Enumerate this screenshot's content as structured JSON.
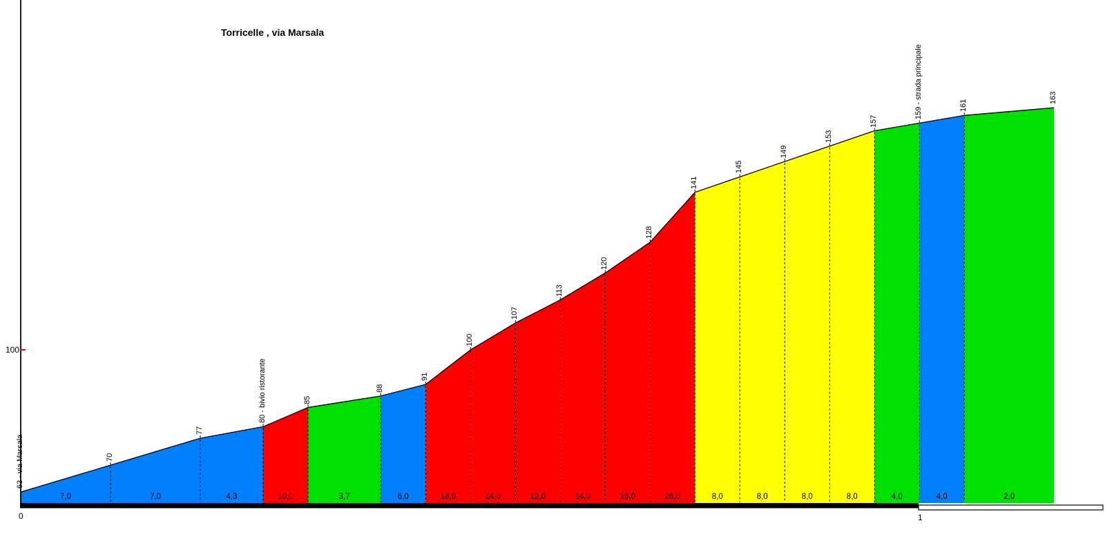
{
  "chart_data": {
    "type": "area",
    "title": "Torricelle , via Marsala",
    "x_axis": {
      "unit": "km",
      "tick_labels": [
        "0",
        "1"
      ],
      "tick_positions_km": [
        0,
        1
      ],
      "range_km": [
        0,
        1.151
      ]
    },
    "y_axis": {
      "unit": "m",
      "tick_labels": [
        "100"
      ],
      "tick_values_m": [
        100
      ],
      "tick_color": "#e80000"
    },
    "palette": {
      "blue": "#0080ff",
      "green": "#00e000",
      "red": "#ff0000",
      "yellow": "#ffff00"
    },
    "points": [
      {
        "km": 0.0,
        "elev_m": 63,
        "label": "63 - via Marsala"
      },
      {
        "km": 0.1,
        "elev_m": 70,
        "label": "70"
      },
      {
        "km": 0.2,
        "elev_m": 77,
        "label": "77"
      },
      {
        "km": 0.27,
        "elev_m": 80,
        "label": "80 - bivio ristorante"
      },
      {
        "km": 0.32,
        "elev_m": 85,
        "label": "85"
      },
      {
        "km": 0.401,
        "elev_m": 88,
        "label": "88"
      },
      {
        "km": 0.451,
        "elev_m": 91,
        "label": "91"
      },
      {
        "km": 0.501,
        "elev_m": 100,
        "label": "100"
      },
      {
        "km": 0.551,
        "elev_m": 107,
        "label": "107"
      },
      {
        "km": 0.601,
        "elev_m": 113,
        "label": "113"
      },
      {
        "km": 0.651,
        "elev_m": 120,
        "label": "120"
      },
      {
        "km": 0.701,
        "elev_m": 128,
        "label": "128"
      },
      {
        "km": 0.751,
        "elev_m": 141,
        "label": "141"
      },
      {
        "km": 0.801,
        "elev_m": 145,
        "label": "145"
      },
      {
        "km": 0.851,
        "elev_m": 149,
        "label": "149"
      },
      {
        "km": 0.901,
        "elev_m": 153,
        "label": "153"
      },
      {
        "km": 0.951,
        "elev_m": 157,
        "label": "157"
      },
      {
        "km": 1.001,
        "elev_m": 159,
        "label": "159 - strada principale"
      },
      {
        "km": 1.051,
        "elev_m": 161,
        "label": "161"
      },
      {
        "km": 1.151,
        "elev_m": 163,
        "label": "163"
      }
    ],
    "segments": [
      {
        "gradient": "7,0",
        "color": "blue"
      },
      {
        "gradient": "7,0",
        "color": "blue"
      },
      {
        "gradient": "4,3",
        "color": "blue"
      },
      {
        "gradient": "10,0",
        "color": "red"
      },
      {
        "gradient": "3,7",
        "color": "green"
      },
      {
        "gradient": "6,0",
        "color": "blue"
      },
      {
        "gradient": "18,0",
        "color": "red"
      },
      {
        "gradient": "14,0",
        "color": "red"
      },
      {
        "gradient": "12,0",
        "color": "red"
      },
      {
        "gradient": "14,0",
        "color": "red"
      },
      {
        "gradient": "16,0",
        "color": "red"
      },
      {
        "gradient": "26,0",
        "color": "red"
      },
      {
        "gradient": "8,0",
        "color": "yellow"
      },
      {
        "gradient": "8,0",
        "color": "yellow"
      },
      {
        "gradient": "8,0",
        "color": "yellow"
      },
      {
        "gradient": "8,0",
        "color": "yellow"
      },
      {
        "gradient": "4,0",
        "color": "green"
      },
      {
        "gradient": "4,0",
        "color": "blue"
      },
      {
        "gradient": "2,0",
        "color": "green"
      }
    ]
  }
}
